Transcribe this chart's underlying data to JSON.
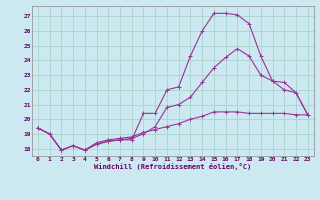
{
  "xlabel": "Windchill (Refroidissement éolien,°C)",
  "bg_color": "#cce8f0",
  "grid_color": "#aad4cc",
  "line_color": "#993399",
  "xlim": [
    -0.5,
    23.5
  ],
  "ylim": [
    17.5,
    27.7
  ],
  "yticks": [
    18,
    19,
    20,
    21,
    22,
    23,
    24,
    25,
    26,
    27
  ],
  "xticks": [
    0,
    1,
    2,
    3,
    4,
    5,
    6,
    7,
    8,
    9,
    10,
    11,
    12,
    13,
    14,
    15,
    16,
    17,
    18,
    19,
    20,
    21,
    22,
    23
  ],
  "line1_x": [
    0,
    1,
    2,
    3,
    4,
    5,
    6,
    7,
    8,
    9,
    10,
    11,
    12,
    13,
    14,
    15,
    16,
    17,
    18,
    19,
    20,
    21,
    22,
    23
  ],
  "line1_y": [
    19.4,
    19.0,
    17.9,
    18.2,
    17.9,
    18.3,
    18.5,
    18.6,
    18.6,
    20.4,
    20.4,
    22.0,
    22.2,
    24.3,
    26.0,
    27.2,
    27.2,
    27.1,
    26.5,
    24.3,
    22.6,
    22.0,
    21.8,
    20.3
  ],
  "line2_x": [
    0,
    1,
    2,
    3,
    4,
    5,
    6,
    7,
    8,
    9,
    10,
    11,
    12,
    13,
    14,
    15,
    16,
    17,
    18,
    19,
    20,
    21,
    22,
    23
  ],
  "line2_y": [
    19.4,
    19.0,
    17.9,
    18.2,
    17.9,
    18.4,
    18.6,
    18.7,
    18.8,
    19.1,
    19.3,
    19.5,
    19.7,
    20.0,
    20.2,
    20.5,
    20.5,
    20.5,
    20.4,
    20.4,
    20.4,
    20.4,
    20.3,
    20.3
  ],
  "line3_x": [
    0,
    1,
    2,
    3,
    4,
    5,
    6,
    7,
    8,
    9,
    10,
    11,
    12,
    13,
    14,
    15,
    16,
    17,
    18,
    19,
    20,
    21,
    22,
    23
  ],
  "line3_y": [
    19.4,
    19.0,
    17.9,
    18.2,
    17.9,
    18.3,
    18.5,
    18.6,
    18.7,
    19.0,
    19.5,
    20.8,
    21.0,
    21.5,
    22.5,
    23.5,
    24.2,
    24.8,
    24.3,
    23.0,
    22.6,
    22.5,
    21.8,
    20.3
  ]
}
